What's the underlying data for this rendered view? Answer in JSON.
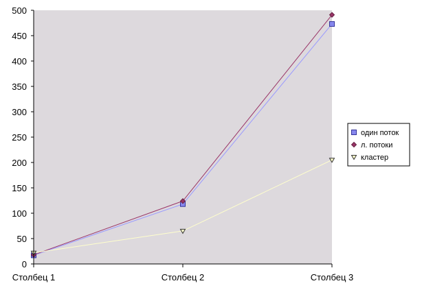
{
  "chart_data": {
    "type": "line",
    "title": "",
    "xlabel": "",
    "ylabel": "",
    "categories": [
      "Столбец 1",
      "Столбец 2",
      "Столбец 3"
    ],
    "ylim": [
      0,
      500
    ],
    "yticks": [
      0,
      50,
      100,
      150,
      200,
      250,
      300,
      350,
      400,
      450,
      500
    ],
    "grid": false,
    "legend_position": "right",
    "plot_background": "#ddd9dd",
    "series": [
      {
        "name": "один поток",
        "values": [
          17,
          118,
          473
        ],
        "line_color": "#9999ff",
        "marker": "square",
        "marker_fill": "#8888ee",
        "marker_stroke": "#333399"
      },
      {
        "name": "л. потоки",
        "values": [
          18,
          124,
          491
        ],
        "line_color": "#993366",
        "marker": "diamond",
        "marker_fill": "#993366",
        "marker_stroke": "#662244"
      },
      {
        "name": "кластер",
        "values": [
          22,
          65,
          205
        ],
        "line_color": "#ffffcc",
        "marker": "triangle-down",
        "marker_fill": "#ffffcc",
        "marker_stroke": "#333333"
      }
    ]
  }
}
